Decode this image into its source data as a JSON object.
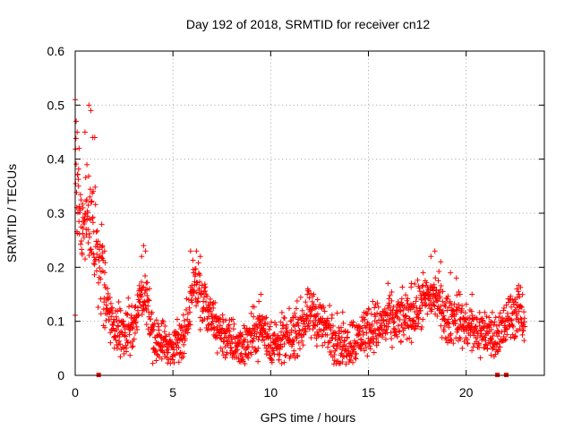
{
  "chart_data": {
    "type": "scatter",
    "title": "Day 192 of 2018, SRMTID for receiver cn12",
    "xlabel": "GPS time / hours",
    "ylabel": "SRMTID / TECUs",
    "xlim": [
      0,
      24
    ],
    "ylim": [
      0,
      0.6
    ],
    "xticks": [
      "0",
      "5",
      "10",
      "15",
      "20"
    ],
    "yticks": [
      "0",
      "0.1",
      "0.2",
      "0.3",
      "0.4",
      "0.5",
      "0.6"
    ],
    "grid": true,
    "marker": "plus",
    "color": "#ff0000",
    "trend": [
      [
        0.0,
        0.4
      ],
      [
        0.3,
        0.3
      ],
      [
        0.6,
        0.28
      ],
      [
        0.9,
        0.3
      ],
      [
        1.2,
        0.22
      ],
      [
        1.5,
        0.15
      ],
      [
        1.8,
        0.11
      ],
      [
        2.2,
        0.085
      ],
      [
        2.7,
        0.08
      ],
      [
        3.0,
        0.085
      ],
      [
        3.3,
        0.14
      ],
      [
        3.6,
        0.15
      ],
      [
        3.9,
        0.08
      ],
      [
        4.3,
        0.06
      ],
      [
        4.8,
        0.055
      ],
      [
        5.3,
        0.06
      ],
      [
        5.8,
        0.1
      ],
      [
        6.1,
        0.18
      ],
      [
        6.4,
        0.14
      ],
      [
        7.0,
        0.1
      ],
      [
        7.5,
        0.08
      ],
      [
        8.0,
        0.06
      ],
      [
        8.5,
        0.055
      ],
      [
        9.0,
        0.07
      ],
      [
        9.5,
        0.09
      ],
      [
        10.0,
        0.06
      ],
      [
        10.5,
        0.06
      ],
      [
        11.0,
        0.07
      ],
      [
        11.5,
        0.09
      ],
      [
        12.0,
        0.11
      ],
      [
        12.5,
        0.1
      ],
      [
        13.0,
        0.08
      ],
      [
        13.5,
        0.06
      ],
      [
        14.0,
        0.06
      ],
      [
        14.5,
        0.07
      ],
      [
        15.0,
        0.09
      ],
      [
        15.5,
        0.09
      ],
      [
        16.0,
        0.1
      ],
      [
        16.5,
        0.1
      ],
      [
        17.0,
        0.11
      ],
      [
        17.5,
        0.12
      ],
      [
        18.0,
        0.14
      ],
      [
        18.3,
        0.15
      ],
      [
        18.6,
        0.14
      ],
      [
        19.0,
        0.1
      ],
      [
        19.5,
        0.11
      ],
      [
        20.0,
        0.09
      ],
      [
        20.5,
        0.08
      ],
      [
        21.0,
        0.08
      ],
      [
        21.5,
        0.07
      ],
      [
        22.0,
        0.09
      ],
      [
        22.4,
        0.12
      ],
      [
        22.8,
        0.11
      ]
    ],
    "peaks": [
      [
        0.0,
        0.51
      ],
      [
        0.05,
        0.47
      ],
      [
        0.1,
        0.45
      ],
      [
        0.2,
        0.42
      ],
      [
        0.5,
        0.45
      ],
      [
        0.7,
        0.5
      ],
      [
        0.8,
        0.49
      ],
      [
        0.9,
        0.44
      ],
      [
        1.0,
        0.44
      ],
      [
        0.6,
        0.39
      ],
      [
        0.75,
        0.33
      ],
      [
        0.4,
        0.31
      ],
      [
        1.4,
        0.24
      ],
      [
        1.5,
        0.23
      ],
      [
        3.5,
        0.24
      ],
      [
        3.6,
        0.23
      ],
      [
        3.4,
        0.22
      ],
      [
        5.9,
        0.23
      ],
      [
        6.2,
        0.23
      ],
      [
        6.4,
        0.22
      ],
      [
        9.5,
        0.15
      ],
      [
        11.9,
        0.16
      ],
      [
        12.2,
        0.15
      ],
      [
        12.4,
        0.14
      ],
      [
        16.0,
        0.17
      ],
      [
        17.2,
        0.17
      ],
      [
        17.8,
        0.19
      ],
      [
        18.2,
        0.22
      ],
      [
        18.4,
        0.23
      ],
      [
        18.7,
        0.21
      ],
      [
        19.2,
        0.19
      ],
      [
        19.5,
        0.18
      ],
      [
        20.3,
        0.15
      ],
      [
        22.6,
        0.16
      ],
      [
        22.7,
        0.15
      ]
    ],
    "data_gaps_hours": [
      1.2,
      21.6,
      22.05
    ],
    "point_count": 1800,
    "time_range_hours": [
      0,
      23.0
    ]
  }
}
